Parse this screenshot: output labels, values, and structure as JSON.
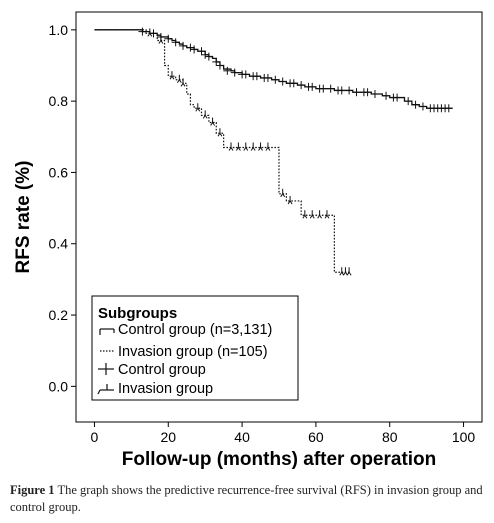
{
  "chart_data": {
    "type": "line",
    "title": "",
    "xlabel": "Follow-up (months) after operation",
    "ylabel": "RFS rate (%)",
    "xlim": [
      -5,
      105
    ],
    "ylim": [
      -0.1,
      1.05
    ],
    "xticks": [
      0,
      20,
      40,
      60,
      80,
      100
    ],
    "yticks": [
      0.0,
      0.2,
      0.4,
      0.6,
      0.8,
      1.0
    ],
    "xtick_labels": [
      "0",
      "20",
      "40",
      "60",
      "80",
      "100"
    ],
    "ytick_labels": [
      "0.0",
      "0.2",
      "0.4",
      "0.6",
      "0.8",
      "1.0"
    ],
    "grid": false,
    "legend_position": "bottom-left",
    "legend_title": "Subgroups",
    "legend_entries": [
      "Control group (n=3,131)",
      "Invasion group (n=105)",
      "Control group",
      "Invasion group"
    ],
    "series": [
      {
        "name": "Control group (n=3,131)",
        "style": "solid",
        "x": [
          0,
          12,
          13,
          15,
          17,
          18,
          20,
          21,
          22,
          23,
          24,
          25,
          27,
          28,
          30,
          31,
          32,
          33,
          34,
          35,
          37,
          38,
          40,
          42,
          45,
          48,
          50,
          52,
          55,
          57,
          60,
          65,
          70,
          75,
          78,
          80,
          84,
          86,
          88,
          90,
          97
        ],
        "y": [
          1.0,
          1.0,
          0.995,
          0.99,
          0.985,
          0.98,
          0.975,
          0.97,
          0.965,
          0.96,
          0.955,
          0.95,
          0.945,
          0.94,
          0.93,
          0.925,
          0.92,
          0.91,
          0.9,
          0.89,
          0.885,
          0.88,
          0.875,
          0.87,
          0.865,
          0.86,
          0.855,
          0.85,
          0.845,
          0.84,
          0.835,
          0.83,
          0.825,
          0.82,
          0.815,
          0.81,
          0.8,
          0.79,
          0.785,
          0.78,
          0.78
        ]
      },
      {
        "name": "Invasion group (n=105)",
        "style": "dotted",
        "x": [
          0,
          12,
          14,
          17,
          19,
          20,
          22,
          24,
          25,
          26,
          27,
          29,
          31,
          33,
          35,
          48,
          50,
          52,
          56,
          64,
          65,
          69
        ],
        "y": [
          1.0,
          1.0,
          0.99,
          0.97,
          0.9,
          0.87,
          0.86,
          0.85,
          0.82,
          0.79,
          0.78,
          0.76,
          0.74,
          0.71,
          0.67,
          0.67,
          0.54,
          0.52,
          0.48,
          0.48,
          0.32,
          0.32
        ]
      }
    ],
    "censor_marks": [
      {
        "name": "Control group",
        "marker": "plus",
        "x": [
          13,
          16,
          18,
          20,
          22,
          24,
          26,
          27,
          29,
          30,
          31,
          33,
          34,
          36,
          38,
          40,
          41,
          43,
          44,
          46,
          47,
          49,
          51,
          53,
          54,
          56,
          58,
          59,
          61,
          62,
          64,
          66,
          67,
          69,
          71,
          73,
          74,
          76,
          79,
          81,
          82,
          85,
          87,
          89,
          91,
          92,
          93,
          94,
          95,
          96
        ],
        "y": [
          0.995,
          0.99,
          0.98,
          0.975,
          0.965,
          0.955,
          0.95,
          0.945,
          0.94,
          0.93,
          0.925,
          0.91,
          0.9,
          0.885,
          0.88,
          0.875,
          0.875,
          0.87,
          0.87,
          0.865,
          0.865,
          0.86,
          0.855,
          0.85,
          0.85,
          0.845,
          0.84,
          0.84,
          0.835,
          0.835,
          0.835,
          0.83,
          0.83,
          0.83,
          0.825,
          0.825,
          0.825,
          0.82,
          0.815,
          0.81,
          0.81,
          0.8,
          0.79,
          0.785,
          0.78,
          0.78,
          0.78,
          0.78,
          0.78,
          0.78
        ]
      },
      {
        "name": "Invasion group",
        "marker": "tick",
        "x": [
          15,
          18,
          21,
          23,
          24,
          28,
          30,
          32,
          34,
          37,
          39,
          41,
          43,
          45,
          47,
          51,
          53,
          57,
          59,
          61,
          63,
          67,
          68,
          69
        ],
        "y": [
          0.99,
          0.97,
          0.87,
          0.86,
          0.85,
          0.78,
          0.76,
          0.74,
          0.71,
          0.67,
          0.67,
          0.67,
          0.67,
          0.67,
          0.67,
          0.54,
          0.52,
          0.48,
          0.48,
          0.48,
          0.48,
          0.32,
          0.32,
          0.32
        ]
      }
    ],
    "colors": {
      "control": "#111111",
      "invasion": "#111111"
    }
  },
  "caption": {
    "label": "Figure 1",
    "text": "The graph shows the predictive recurrence-free survival (RFS) in invasion group and control group."
  }
}
